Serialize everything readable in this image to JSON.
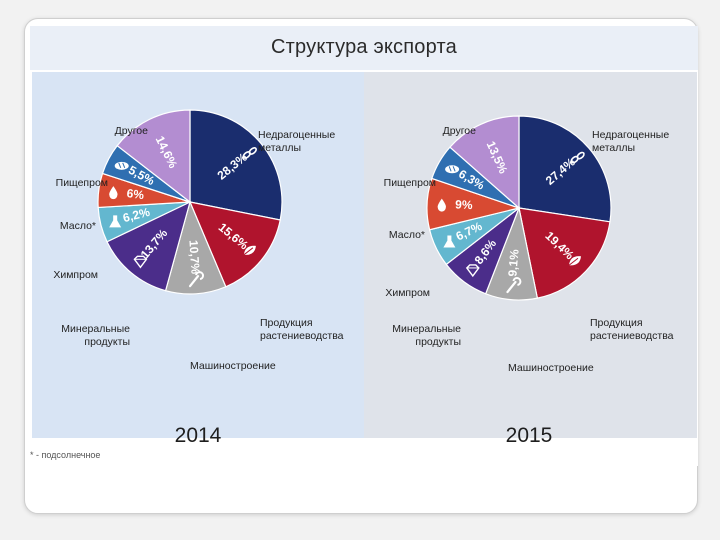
{
  "title": "Структура экспорта",
  "footnote": "* - подсолнечное",
  "colors": {
    "metals": "#1a2d6e",
    "crops": "#b0142d",
    "machinery": "#a8a8a8",
    "minerals": "#4b2d8a",
    "chem": "#63b7cf",
    "oil": "#d84a32",
    "food": "#2f6fb1",
    "other": "#b38dd1"
  },
  "chart_data": [
    {
      "type": "pie",
      "year_label": "2014",
      "slices": [
        {
          "key": "metals",
          "label": "Недрагоценные\nметаллы",
          "value": 28.3,
          "value_label": "28,3%",
          "icon": "chain-icon"
        },
        {
          "key": "crops",
          "label": "Продукция\nрастениеводства",
          "value": 15.6,
          "value_label": "15,6%",
          "icon": "leaf-icon"
        },
        {
          "key": "machinery",
          "label": "Машиностроение",
          "value": 10.7,
          "value_label": "10,7%",
          "icon": "wrench-icon"
        },
        {
          "key": "minerals",
          "label": "Минеральные\nпродукты",
          "value": 13.7,
          "value_label": "13,7%",
          "icon": "diamond-icon"
        },
        {
          "key": "chem",
          "label": "Химпром",
          "value": 6.2,
          "value_label": "6,2%",
          "icon": "flask-icon"
        },
        {
          "key": "oil",
          "label": "Масло*",
          "value": 6,
          "value_label": "6%",
          "icon": "drop-icon"
        },
        {
          "key": "food",
          "label": "Пищепром",
          "value": 5.5,
          "value_label": "5,5%",
          "icon": "bread-icon"
        },
        {
          "key": "other",
          "label": "Другое",
          "value": 14.6,
          "value_label": "14,6%",
          "icon": ""
        }
      ]
    },
    {
      "type": "pie",
      "year_label": "2015",
      "slices": [
        {
          "key": "metals",
          "label": "Недрагоценные\nметаллы",
          "value": 27.4,
          "value_label": "27,4%",
          "icon": "chain-icon"
        },
        {
          "key": "crops",
          "label": "Продукция\nрастениеводства",
          "value": 19.4,
          "value_label": "19,4%",
          "icon": "leaf-icon"
        },
        {
          "key": "machinery",
          "label": "Машиностроение",
          "value": 9.1,
          "value_label": "9,1%",
          "icon": "wrench-icon"
        },
        {
          "key": "minerals",
          "label": "Минеральные\nпродукты",
          "value": 8.6,
          "value_label": "8,6%",
          "icon": "diamond-icon"
        },
        {
          "key": "chem",
          "label": "Химпром",
          "value": 6.7,
          "value_label": "6,7%",
          "icon": "flask-icon"
        },
        {
          "key": "oil",
          "label": "Масло*",
          "value": 9,
          "value_label": "9%",
          "icon": "drop-icon"
        },
        {
          "key": "food",
          "label": "Пищепром",
          "value": 6.3,
          "value_label": "6,3%",
          "icon": "bread-icon"
        },
        {
          "key": "other",
          "label": "Другое",
          "value": 13.5,
          "value_label": "13,5%",
          "icon": ""
        }
      ]
    }
  ]
}
